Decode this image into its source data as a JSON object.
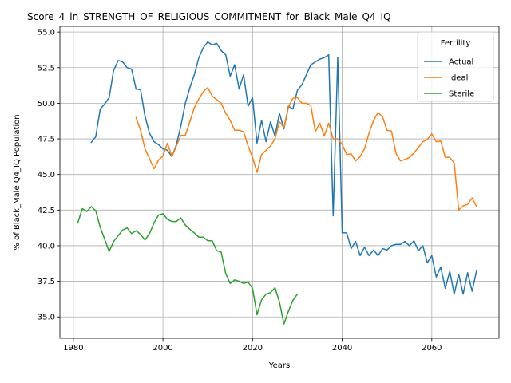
{
  "chart_data": {
    "type": "line",
    "title": "Score_4_in_STRENGTH_OF_RELIGIOUS_COMMITMENT_for_Black_Male_Q4_IQ",
    "xlabel": "Years",
    "ylabel": "% of Black_Male Q4_IQ Population",
    "xlim": [
      1977,
      2075
    ],
    "ylim": [
      33.5,
      55.4
    ],
    "xticks": [
      1980,
      2000,
      2020,
      2040,
      2060
    ],
    "yticks": [
      35.0,
      37.5,
      40.0,
      42.5,
      45.0,
      47.5,
      50.0,
      52.5,
      55.0
    ],
    "grid": true,
    "legend": {
      "title": "Fertility",
      "placement": "top-right"
    },
    "series": [
      {
        "name": "Actual",
        "color": "#1f77b4",
        "x": [
          1984,
          1985,
          1986,
          1987,
          1988,
          1989,
          1990,
          1991,
          1992,
          1993,
          1994,
          1995,
          1996,
          1997,
          1998,
          1999,
          2000,
          2001,
          2002,
          2003,
          2004,
          2005,
          2006,
          2007,
          2008,
          2009,
          2010,
          2011,
          2012,
          2013,
          2014,
          2015,
          2016,
          2017,
          2018,
          2019,
          2020,
          2021,
          2022,
          2023,
          2024,
          2025,
          2026,
          2027,
          2028,
          2029,
          2030,
          2031,
          2032,
          2033,
          2034,
          2035,
          2036,
          2037,
          2038,
          2039,
          2040,
          2041,
          2042,
          2043,
          2044,
          2045,
          2046,
          2047,
          2048,
          2049,
          2050,
          2051,
          2052,
          2053,
          2054,
          2055,
          2056,
          2057,
          2058,
          2059,
          2060,
          2061,
          2062,
          2063,
          2064,
          2065,
          2066,
          2067,
          2068,
          2069,
          2070
        ],
        "values": [
          47.25,
          47.65,
          49.6,
          49.95,
          50.4,
          52.3,
          53.0,
          52.9,
          52.5,
          52.4,
          51.0,
          50.95,
          49.1,
          47.9,
          47.3,
          47.1,
          46.8,
          46.7,
          46.25,
          47.1,
          48.4,
          50.0,
          51.1,
          52.0,
          53.2,
          53.9,
          54.3,
          54.1,
          54.2,
          53.7,
          53.4,
          51.9,
          52.7,
          51.0,
          52.0,
          49.8,
          50.4,
          47.2,
          48.8,
          47.3,
          48.7,
          47.7,
          49.3,
          48.2,
          49.8,
          49.6,
          50.9,
          51.3,
          52.0,
          52.7,
          52.9,
          53.1,
          53.2,
          53.4,
          42.1,
          53.2,
          40.9,
          40.9,
          39.8,
          40.3,
          39.3,
          39.9,
          39.3,
          39.7,
          39.3,
          39.8,
          39.7,
          40.0,
          40.1,
          40.1,
          40.3,
          40.0,
          40.35,
          39.65,
          40.0,
          38.8,
          39.3,
          37.8,
          38.5,
          37.0,
          38.2,
          36.6,
          38.0,
          36.6,
          38.1,
          36.8,
          38.25
        ]
      },
      {
        "name": "Ideal",
        "color": "#ff7f0e",
        "x": [
          1994,
          1995,
          1996,
          1997,
          1998,
          1999,
          2000,
          2001,
          2002,
          2003,
          2004,
          2005,
          2006,
          2007,
          2008,
          2009,
          2010,
          2011,
          2012,
          2013,
          2014,
          2015,
          2016,
          2017,
          2018,
          2019,
          2020,
          2021,
          2022,
          2023,
          2024,
          2025,
          2026,
          2027,
          2028,
          2029,
          2030,
          2031,
          2032,
          2033,
          2034,
          2035,
          2036,
          2037,
          2038,
          2039,
          2040,
          2041,
          2042,
          2043,
          2044,
          2045,
          2046,
          2047,
          2048,
          2049,
          2050,
          2051,
          2052,
          2053,
          2054,
          2055,
          2056,
          2057,
          2058,
          2059,
          2060,
          2061,
          2062,
          2063,
          2064,
          2065,
          2066,
          2067,
          2068,
          2069,
          2070
        ],
        "values": [
          49.0,
          48.1,
          46.8,
          46.1,
          45.4,
          46.0,
          46.3,
          47.2,
          46.25,
          47.0,
          47.75,
          47.75,
          48.7,
          49.7,
          50.3,
          50.8,
          51.1,
          50.5,
          50.25,
          50.0,
          49.3,
          48.8,
          48.1,
          48.1,
          48.0,
          47.0,
          46.2,
          45.15,
          46.4,
          46.7,
          47.0,
          47.5,
          48.7,
          48.3,
          49.7,
          50.35,
          50.4,
          50.0,
          50.0,
          49.85,
          48.0,
          48.6,
          47.7,
          48.6,
          47.5,
          47.5,
          47.1,
          46.4,
          46.45,
          45.95,
          46.25,
          46.8,
          47.9,
          48.8,
          49.35,
          49.05,
          48.1,
          48.05,
          46.5,
          45.95,
          46.05,
          46.2,
          46.5,
          46.9,
          47.3,
          47.45,
          47.85,
          47.3,
          47.35,
          46.2,
          46.2,
          45.8,
          42.5,
          42.8,
          42.9,
          43.35,
          42.75
        ]
      },
      {
        "name": "Sterile",
        "color": "#2ca02c",
        "x": [
          1981,
          1982,
          1983,
          1984,
          1985,
          1986,
          1987,
          1988,
          1989,
          1990,
          1991,
          1992,
          1993,
          1994,
          1995,
          1996,
          1997,
          1998,
          1999,
          2000,
          2001,
          2002,
          2003,
          2004,
          2005,
          2006,
          2007,
          2008,
          2009,
          2010,
          2011,
          2012,
          2013,
          2014,
          2015,
          2016,
          2017,
          2018,
          2019,
          2020,
          2021,
          2022,
          2023,
          2024,
          2025,
          2026,
          2027,
          2028,
          2029,
          2030
        ],
        "values": [
          41.6,
          42.6,
          42.4,
          42.75,
          42.45,
          41.3,
          40.45,
          39.6,
          40.3,
          40.7,
          41.1,
          41.25,
          40.85,
          41.05,
          40.8,
          40.4,
          40.85,
          41.6,
          42.15,
          42.25,
          41.85,
          41.7,
          41.7,
          41.95,
          41.45,
          41.15,
          40.9,
          40.6,
          40.6,
          40.35,
          40.35,
          39.65,
          39.55,
          38.05,
          37.35,
          37.6,
          37.5,
          37.35,
          37.45,
          37.0,
          35.15,
          36.2,
          36.6,
          36.7,
          37.05,
          36.05,
          34.5,
          35.4,
          36.15,
          36.6
        ]
      }
    ]
  }
}
